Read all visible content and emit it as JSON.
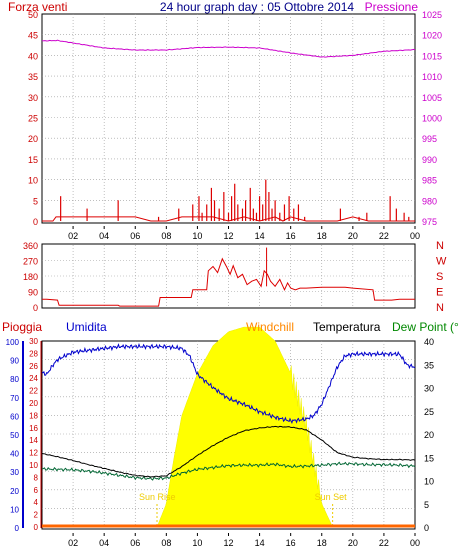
{
  "chart_data": {
    "type": "line",
    "title": "24 hour graph day : 05 Ottobre 2014",
    "x_hours": [
      "02",
      "04",
      "06",
      "08",
      "10",
      "12",
      "14",
      "16",
      "18",
      "20",
      "22",
      "00"
    ],
    "wind": {
      "left_label": "Forza venti",
      "right_label": "Pressione",
      "left_ticks": [
        "0",
        "5",
        "10",
        "15",
        "20",
        "25",
        "30",
        "35",
        "40",
        "45",
        "50"
      ],
      "right_ticks": [
        "975",
        "980",
        "985",
        "990",
        "995",
        "1000",
        "1005",
        "1010",
        "1015",
        "1020",
        "1025"
      ],
      "left_range": [
        0,
        50
      ],
      "right_range": [
        975,
        1025
      ],
      "pressure": {
        "hours": [
          0,
          1,
          2,
          3,
          4,
          6,
          8,
          10,
          12,
          14,
          16,
          18,
          20,
          22,
          24
        ],
        "values": [
          1018.5,
          1018.6,
          1018.0,
          1017.4,
          1016.8,
          1016.3,
          1016.3,
          1016.9,
          1017.0,
          1016.8,
          1015.6,
          1014.6,
          1015.0,
          1016.0,
          1016.4
        ]
      },
      "gusts": [
        [
          1.2,
          6
        ],
        [
          2.9,
          3
        ],
        [
          4.9,
          5
        ],
        [
          7.5,
          1
        ],
        [
          8.8,
          3
        ],
        [
          9.7,
          4
        ],
        [
          10.1,
          6
        ],
        [
          10.3,
          2
        ],
        [
          10.6,
          4
        ],
        [
          10.9,
          8
        ],
        [
          11.1,
          5
        ],
        [
          11.4,
          3
        ],
        [
          11.7,
          7
        ],
        [
          12.0,
          2
        ],
        [
          12.2,
          6
        ],
        [
          12.4,
          9
        ],
        [
          12.6,
          4
        ],
        [
          12.9,
          3
        ],
        [
          13.1,
          5
        ],
        [
          13.4,
          8
        ],
        [
          13.6,
          3
        ],
        [
          13.8,
          2
        ],
        [
          14.0,
          6
        ],
        [
          14.2,
          4
        ],
        [
          14.4,
          10
        ],
        [
          14.6,
          7
        ],
        [
          14.8,
          3
        ],
        [
          15.0,
          5
        ],
        [
          15.3,
          2
        ],
        [
          15.6,
          4
        ],
        [
          15.9,
          6
        ],
        [
          16.2,
          3
        ],
        [
          16.5,
          4
        ],
        [
          16.9,
          1
        ],
        [
          19.2,
          3
        ],
        [
          20.4,
          1
        ],
        [
          20.9,
          2
        ],
        [
          22.4,
          6
        ],
        [
          22.8,
          3
        ],
        [
          23.3,
          2
        ],
        [
          23.6,
          1
        ]
      ],
      "wind_line": {
        "hours": [
          0,
          0.7,
          0.9,
          1.3,
          2,
          4,
          6,
          7,
          8,
          9,
          10,
          11,
          12,
          13,
          14,
          15,
          15.5,
          16,
          17,
          18,
          19,
          20,
          21,
          22,
          23,
          24
        ],
        "values": [
          0,
          0,
          1,
          1,
          1,
          1,
          1,
          0,
          0,
          1,
          1,
          1,
          0,
          1,
          0,
          1,
          0,
          1,
          0,
          0,
          0,
          1,
          0,
          0,
          0,
          0
        ]
      }
    },
    "direction": {
      "left_ticks": [
        "0",
        "90",
        "180",
        "270",
        "360"
      ],
      "right_labels": [
        "N",
        "W",
        "S",
        "E",
        "N"
      ],
      "range": [
        0,
        360
      ],
      "series": {
        "hours": [
          0,
          0.3,
          1.0,
          1.1,
          4.9,
          5.0,
          7.5,
          7.6,
          9.6,
          9.7,
          10.6,
          10.7,
          11.0,
          11.3,
          11.6,
          11.9,
          12.1,
          12.3,
          12.6,
          12.9,
          13.2,
          13.5,
          13.8,
          14.1,
          14.3,
          14.5,
          14.7,
          15.0,
          15.3,
          15.6,
          15.8,
          16.0,
          16.3,
          16.6,
          17.0,
          18.0,
          19.5,
          20.0,
          21.3,
          21.4,
          22.5,
          23.0,
          24.0
        ],
        "values": [
          45,
          45,
          40,
          10,
          10,
          5,
          5,
          55,
          55,
          100,
          100,
          210,
          235,
          200,
          280,
          230,
          190,
          240,
          170,
          190,
          130,
          150,
          160,
          120,
          210,
          190,
          150,
          120,
          160,
          100,
          140,
          110,
          100,
          110,
          110,
          115,
          115,
          110,
          100,
          40,
          40,
          45,
          45
        ]
      }
    },
    "bottom": {
      "labels": [
        "Pioggia",
        "Umidita",
        "Windchill",
        "Temperatura",
        "Dew Point (°C"
      ],
      "humidity_ticks": [
        "0",
        "10",
        "20",
        "30",
        "40",
        "50",
        "60",
        "70",
        "80",
        "90",
        "100"
      ],
      "rain_ticks": [
        "0",
        "2",
        "4",
        "6",
        "8",
        "10",
        "12",
        "14",
        "16",
        "18",
        "20",
        "22",
        "24",
        "26",
        "28",
        "30"
      ],
      "temp_ticks": [
        "0",
        "5",
        "10",
        "15",
        "20",
        "25",
        "30",
        "35",
        "40"
      ],
      "humidity_range": [
        0,
        100
      ],
      "temp_range": [
        0,
        40
      ],
      "sun_rise_label": "Sun Rise",
      "sun_set_label": "Sun Set",
      "sun_rise_hour": 7.4,
      "sun_set_hour": 18.7,
      "humidity": {
        "hours": [
          0,
          0.3,
          0.7,
          1.0,
          1.5,
          2,
          3,
          4,
          5,
          6,
          7,
          8,
          9,
          9.5,
          10,
          11,
          12,
          13,
          14,
          15,
          16,
          17,
          17.5,
          18,
          18.5,
          19,
          19.5,
          20,
          21,
          22,
          23,
          23.5,
          24
        ],
        "values": [
          83,
          82,
          87,
          90,
          92,
          94,
          95,
          96,
          97,
          97,
          97,
          97,
          96,
          92,
          82,
          75,
          69,
          66,
          62,
          59,
          57,
          58,
          60,
          66,
          76,
          86,
          92,
          93,
          93,
          93,
          93,
          87,
          86
        ]
      },
      "temperature": {
        "hours": [
          0,
          1,
          2,
          3,
          4,
          5,
          6,
          7,
          8,
          9,
          10,
          11,
          12,
          13,
          14,
          15,
          16,
          17,
          18,
          19,
          20,
          21,
          22,
          23,
          24
        ],
        "values": [
          15.8,
          15.1,
          14.3,
          13.4,
          12.6,
          11.8,
          11.1,
          10.8,
          11.0,
          13.0,
          15.4,
          17.5,
          19.3,
          20.7,
          21.3,
          21.6,
          21.5,
          20.9,
          18.7,
          16.0,
          15.0,
          14.7,
          14.5,
          14.5,
          14.4
        ]
      },
      "dew_point": {
        "hours": [
          0,
          1,
          2,
          3,
          4,
          5,
          6,
          7,
          8,
          9,
          10,
          11,
          12,
          13,
          14,
          15,
          16,
          17,
          18,
          19,
          20,
          21,
          22,
          23,
          24
        ],
        "values": [
          12.5,
          12.4,
          12.3,
          12.0,
          11.6,
          11.1,
          10.6,
          10.4,
          10.5,
          11.6,
          12.4,
          12.8,
          13.2,
          13.3,
          13.3,
          13.5,
          13.0,
          13.1,
          13.3,
          13.6,
          13.6,
          13.4,
          13.4,
          13.3,
          13.1
        ]
      },
      "solar": {
        "hours": [
          7.4,
          8,
          8.5,
          9,
          10,
          11,
          12,
          13,
          14,
          15,
          16,
          17,
          17.6,
          18,
          18.7
        ],
        "values": [
          0,
          5,
          15,
          24,
          33,
          39,
          42,
          43,
          43,
          40,
          33,
          22,
          12,
          5,
          0
        ]
      }
    },
    "colors": {
      "axis_red": "#cc0000",
      "axis_blue": "#0000cc",
      "wind": "#dd0000",
      "pressure": "#cc00cc",
      "humidity": "#0000cc",
      "temperature": "#000000",
      "dew_point": "#006633",
      "solar": "#ffff00",
      "rain": "#ff6600",
      "windchill": "#ff8800",
      "title": "#000088",
      "dewpoint_label": "#008800",
      "grid": "#999999"
    }
  }
}
